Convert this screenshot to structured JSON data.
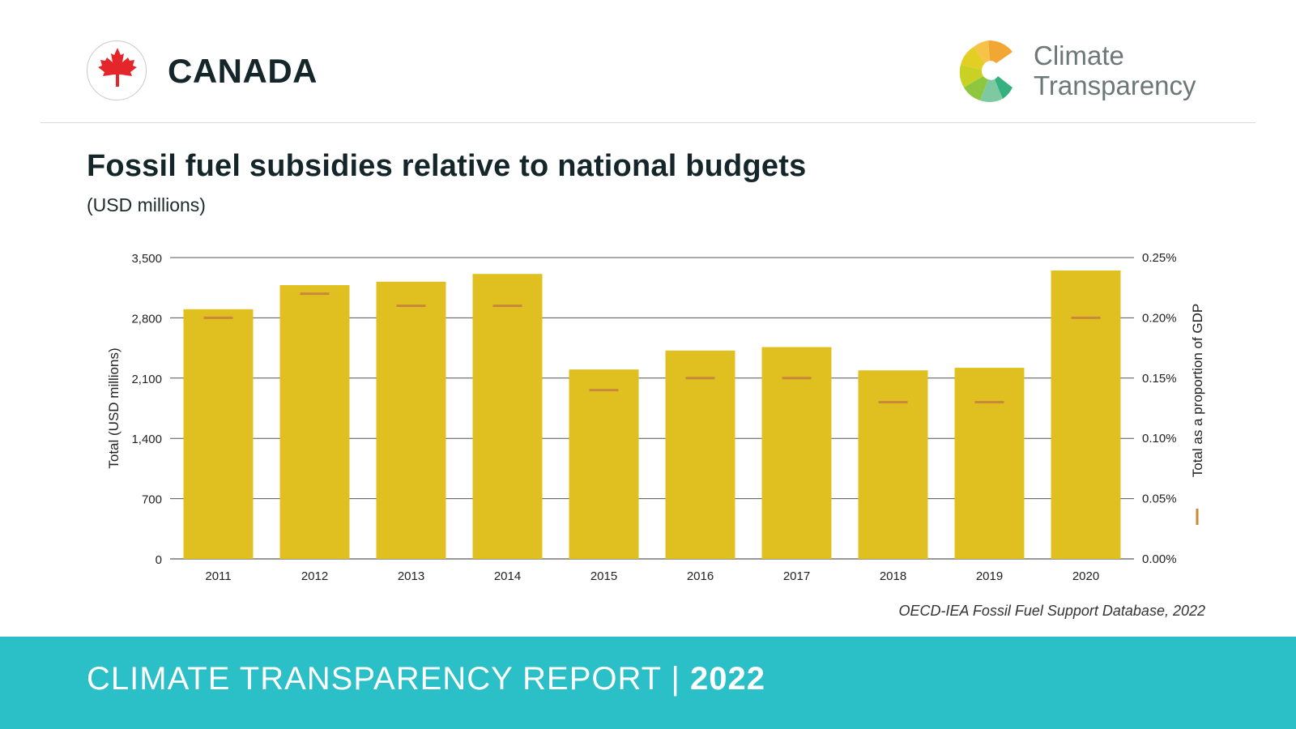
{
  "header": {
    "country": "CANADA",
    "logo_line1": "Climate",
    "logo_line2": "Transparency"
  },
  "title": "Fossil fuel subsidies relative to national budgets",
  "subtitle": "(USD millions)",
  "source": "OECD-IEA Fossil Fuel Support Database, 2022",
  "footer": {
    "text": "CLIMATE TRANSPARENCY REPORT",
    "separator": "|",
    "year": "2022"
  },
  "colors": {
    "bar": "#e0c021",
    "gdp_marker": "#c9893a",
    "grid": "#555555",
    "footer": "#2bbfc8",
    "flag_red": "#e42529"
  },
  "chart_data": {
    "type": "bar",
    "categories": [
      "2011",
      "2012",
      "2013",
      "2014",
      "2015",
      "2016",
      "2017",
      "2018",
      "2019",
      "2020"
    ],
    "series": [
      {
        "values": [
          2900,
          3180,
          3220,
          3310,
          2200,
          2420,
          2460,
          2190,
          2220,
          3350
        ],
        "axis": "left"
      },
      {
        "values": [
          0.2,
          0.22,
          0.21,
          0.21,
          0.14,
          0.15,
          0.15,
          0.13,
          0.13,
          0.2
        ],
        "axis": "right",
        "style": "marker"
      }
    ],
    "ylabel": "Total (USD millions)",
    "y2label": "Total as a proportion of GDP",
    "ylim": [
      0,
      3500
    ],
    "y2lim": [
      0,
      0.25
    ],
    "yticks": [
      "0",
      "700",
      "1,400",
      "2,100",
      "2,800",
      "3,500"
    ],
    "y2ticks": [
      "0.00%",
      "0.05%",
      "0.10%",
      "0.15%",
      "0.20%",
      "0.25%"
    ],
    "grid": true
  }
}
